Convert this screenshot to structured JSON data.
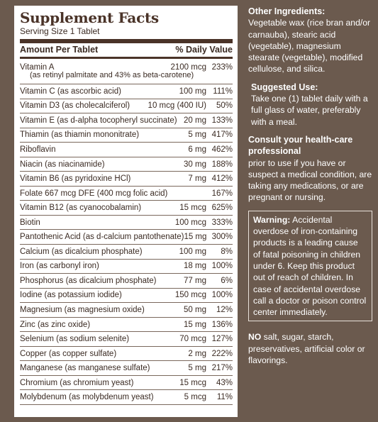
{
  "facts": {
    "title": "Supplement Facts",
    "serving": "Serving Size 1 Tablet",
    "col_amount": "Amount Per Tablet",
    "col_dv": "% Daily Value",
    "rows": [
      {
        "name": "Vitamin A",
        "detail": "(as retinyl palmitate and 43% as beta-carotene)",
        "amount": "2100 mcg",
        "dv": "233%"
      },
      {
        "name": "Vitamin C",
        "detail": "(as ascorbic acid)",
        "amount": "100 mg",
        "dv": "111%"
      },
      {
        "name": "Vitamin D3",
        "detail": "(as cholecalciferol)",
        "amount": "10 mcg (400 IU)",
        "dv": "50%"
      },
      {
        "name": "Vitamin E",
        "detail": "(as d-alpha tocopheryl succinate)",
        "amount": "20 mg",
        "dv": "133%"
      },
      {
        "name": "Thiamin",
        "detail": "(as thiamin mononitrate)",
        "amount": "5 mg",
        "dv": "417%"
      },
      {
        "name": "Riboflavin",
        "detail": "",
        "amount": "6 mg",
        "dv": "462%"
      },
      {
        "name": "Niacin",
        "detail": "(as niacinamide)",
        "amount": "30 mg",
        "dv": "188%"
      },
      {
        "name": "Vitamin B6",
        "detail": "(as pyridoxine HCl)",
        "amount": "7 mg",
        "dv": "412%"
      },
      {
        "name": "Folate",
        "detail": "667 mcg DFE (400 mcg folic acid)",
        "amount": "",
        "dv": "167%"
      },
      {
        "name": "Vitamin B12",
        "detail": "(as cyanocobalamin)",
        "amount": "15 mcg",
        "dv": "625%"
      },
      {
        "name": "Biotin",
        "detail": "",
        "amount": "100 mcg",
        "dv": "333%"
      },
      {
        "name": "Pantothenic Acid",
        "detail": "(as d-calcium pantothenate)",
        "amount": "15 mg",
        "dv": "300%"
      },
      {
        "name": "Calcium",
        "detail": "(as dicalcium phosphate)",
        "amount": "100 mg",
        "dv": "8%"
      },
      {
        "name": "Iron",
        "detail": "(as carbonyl iron)",
        "amount": "18 mg",
        "dv": "100%"
      },
      {
        "name": "Phosphorus",
        "detail": "(as dicalcium phosphate)",
        "amount": "77 mg",
        "dv": "6%"
      },
      {
        "name": "Iodine",
        "detail": "(as potassium iodide)",
        "amount": "150 mcg",
        "dv": "100%"
      },
      {
        "name": "Magnesium",
        "detail": "(as magnesium oxide)",
        "amount": "50 mg",
        "dv": "12%"
      },
      {
        "name": "Zinc",
        "detail": "(as zinc oxide)",
        "amount": "15 mg",
        "dv": "136%"
      },
      {
        "name": "Selenium",
        "detail": "(as sodium selenite)",
        "amount": "70 mcg",
        "dv": "127%"
      },
      {
        "name": "Copper",
        "detail": "(as copper sulfate)",
        "amount": "2 mg",
        "dv": "222%"
      },
      {
        "name": "Manganese",
        "detail": "(as manganese sulfate)",
        "amount": "5 mg",
        "dv": "217%"
      },
      {
        "name": "Chromium",
        "detail": "(as chromium yeast)",
        "amount": "15 mcg",
        "dv": "43%"
      },
      {
        "name": "Molybdenum",
        "detail": "(as molybdenum yeast)",
        "amount": "5 mcg",
        "dv": "11%"
      }
    ]
  },
  "side": {
    "other_title": "Other Ingredients:",
    "other_text": "Vegetable wax (rice bran and/or carnauba), stearic acid (vegetable), magnesium stearate (vegetable), modified cellulose, and silica.",
    "use_title": "Suggested Use:",
    "use_text": "Take one (1) tablet daily with a full glass of water, preferably with a meal.",
    "consult_title": "Consult your health-care professional",
    "consult_text": "prior to use if you have or suspect a medical condition, are taking any medications, or are pregnant or nursing.",
    "warning_title": "Warning:",
    "warning_text": "Accidental overdose of iron-containing products is a leading cause of fatal poisoning in children under 6. Keep this product out of reach of children. In case of accidental overdose call a doctor or poison control center immediately.",
    "no_title": "NO",
    "no_text": "salt, sugar, starch, preservatives, artificial color or flavorings."
  }
}
